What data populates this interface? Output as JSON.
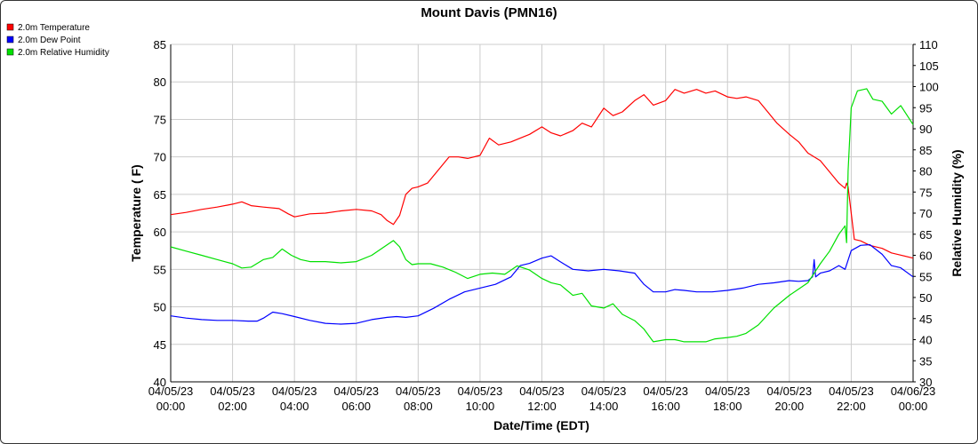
{
  "chart_data": {
    "type": "line",
    "title": "Mount Davis (PMN16)",
    "xlabel": "Date/Time (EDT)",
    "ylabel_left": "Temperature ( F)",
    "ylabel_right": "Relative Humidity (%)",
    "ylim_left": [
      40,
      85
    ],
    "ylim_right": [
      30,
      110
    ],
    "xlim_hours": [
      0,
      24
    ],
    "grid": true,
    "legend_position": "top-left",
    "x_tick_labels": [
      [
        "04/05/23",
        "00:00"
      ],
      [
        "04/05/23",
        "02:00"
      ],
      [
        "04/05/23",
        "04:00"
      ],
      [
        "04/05/23",
        "06:00"
      ],
      [
        "04/05/23",
        "08:00"
      ],
      [
        "04/05/23",
        "10:00"
      ],
      [
        "04/05/23",
        "12:00"
      ],
      [
        "04/05/23",
        "14:00"
      ],
      [
        "04/05/23",
        "16:00"
      ],
      [
        "04/05/23",
        "18:00"
      ],
      [
        "04/05/23",
        "20:00"
      ],
      [
        "04/05/23",
        "22:00"
      ],
      [
        "04/06/23",
        "00:00"
      ]
    ],
    "y_ticks_left": [
      40,
      45,
      50,
      55,
      60,
      65,
      70,
      75,
      80,
      85
    ],
    "y_ticks_right": [
      30,
      35,
      40,
      45,
      50,
      55,
      60,
      65,
      70,
      75,
      80,
      85,
      90,
      95,
      100,
      105,
      110
    ],
    "series": [
      {
        "name": "2.0m Temperature",
        "color": "#ff0000",
        "axis": "left",
        "x": [
          0,
          0.5,
          1,
          1.5,
          2,
          2.3,
          2.6,
          3,
          3.5,
          3.8,
          4,
          4.5,
          5,
          5.5,
          6,
          6.5,
          6.8,
          7,
          7.2,
          7.4,
          7.6,
          7.8,
          8,
          8.3,
          8.6,
          9,
          9.3,
          9.6,
          10,
          10.3,
          10.6,
          11,
          11.3,
          11.6,
          12,
          12.3,
          12.6,
          13,
          13.3,
          13.6,
          14,
          14.3,
          14.6,
          15,
          15.3,
          15.6,
          16,
          16.3,
          16.6,
          17,
          17.3,
          17.6,
          18,
          18.3,
          18.6,
          19,
          19.3,
          19.6,
          20,
          20.3,
          20.6,
          21,
          21.3,
          21.6,
          21.8,
          21.85,
          21.9,
          22.0,
          22.1,
          22.3,
          22.6,
          23,
          23.3,
          23.6,
          24
        ],
        "y": [
          62.3,
          62.6,
          63.0,
          63.3,
          63.7,
          64.0,
          63.5,
          63.3,
          63.1,
          62.4,
          62.0,
          62.4,
          62.5,
          62.8,
          63.0,
          62.8,
          62.3,
          61.5,
          61.0,
          62.2,
          65.0,
          65.8,
          66.0,
          66.5,
          68.0,
          70.0,
          70.0,
          69.8,
          70.2,
          72.5,
          71.6,
          72.0,
          72.5,
          73.0,
          74.0,
          73.2,
          72.8,
          73.5,
          74.5,
          74.0,
          76.5,
          75.5,
          76.0,
          77.5,
          78.3,
          76.9,
          77.5,
          79.0,
          78.5,
          79.0,
          78.5,
          78.8,
          78.0,
          77.8,
          78.0,
          77.5,
          76.0,
          74.5,
          73.0,
          72.0,
          70.5,
          69.5,
          68.0,
          66.5,
          65.8,
          66.5,
          66.0,
          62.5,
          59.0,
          58.8,
          58.2,
          57.8,
          57.2,
          56.9,
          56.5
        ]
      },
      {
        "name": "2.0m Dew Point",
        "color": "#0000ff",
        "axis": "left",
        "x": [
          0,
          0.5,
          1,
          1.5,
          2,
          2.5,
          2.8,
          3,
          3.3,
          3.6,
          4,
          4.5,
          5,
          5.5,
          6,
          6.5,
          7,
          7.3,
          7.6,
          8,
          8.5,
          9,
          9.5,
          10,
          10.5,
          11,
          11.3,
          11.6,
          12,
          12.3,
          12.6,
          13,
          13.5,
          14,
          14.5,
          15,
          15.3,
          15.6,
          16,
          16.3,
          16.6,
          17,
          17.5,
          18,
          18.5,
          19,
          19.5,
          20,
          20.3,
          20.6,
          20.75,
          20.8,
          20.85,
          21,
          21.3,
          21.6,
          21.8,
          22,
          22.3,
          22.6,
          23,
          23.3,
          23.6,
          24
        ],
        "y": [
          48.8,
          48.5,
          48.3,
          48.2,
          48.2,
          48.1,
          48.1,
          48.5,
          49.3,
          49.1,
          48.7,
          48.2,
          47.8,
          47.7,
          47.8,
          48.3,
          48.6,
          48.7,
          48.6,
          48.8,
          49.8,
          51.0,
          52.0,
          52.5,
          53.0,
          54.0,
          55.5,
          55.8,
          56.5,
          56.8,
          56.0,
          55.0,
          54.8,
          55.0,
          54.8,
          54.5,
          53.0,
          52.0,
          52.0,
          52.3,
          52.2,
          52.0,
          52.0,
          52.2,
          52.5,
          53.0,
          53.2,
          53.5,
          53.4,
          53.5,
          54.0,
          56.3,
          54.0,
          54.5,
          54.8,
          55.5,
          55.0,
          57.5,
          58.2,
          58.3,
          57.0,
          55.5,
          55.2,
          54.0
        ]
      },
      {
        "name": "2.0m Relative Humidity",
        "color": "#00e000",
        "axis": "right",
        "x": [
          0,
          0.5,
          1,
          1.5,
          2,
          2.3,
          2.6,
          3,
          3.3,
          3.6,
          3.9,
          4.2,
          4.5,
          5,
          5.5,
          6,
          6.5,
          7,
          7.2,
          7.4,
          7.6,
          7.8,
          8,
          8.4,
          8.8,
          9.2,
          9.6,
          10,
          10.4,
          10.8,
          11.2,
          11.6,
          12,
          12.3,
          12.6,
          13,
          13.3,
          13.6,
          14,
          14.3,
          14.6,
          15,
          15.3,
          15.6,
          16,
          16.3,
          16.6,
          17,
          17.3,
          17.6,
          18,
          18.3,
          18.6,
          19,
          19.5,
          20,
          20.3,
          20.6,
          21,
          21.3,
          21.6,
          21.8,
          21.85,
          21.9,
          22.0,
          22.2,
          22.5,
          22.7,
          23,
          23.3,
          23.6,
          24
        ],
        "y": [
          62.0,
          61.0,
          60.0,
          59.0,
          58.0,
          57.0,
          57.2,
          59.0,
          59.5,
          61.5,
          60.0,
          59.0,
          58.5,
          58.5,
          58.2,
          58.5,
          60.0,
          62.5,
          63.5,
          62.0,
          59.0,
          57.8,
          58.0,
          58.0,
          57.2,
          56.0,
          54.5,
          55.5,
          55.8,
          55.5,
          57.5,
          56.5,
          54.5,
          53.5,
          53.0,
          50.5,
          51.0,
          48.0,
          47.5,
          48.5,
          46.0,
          44.5,
          42.5,
          39.5,
          40.0,
          40.0,
          39.5,
          39.5,
          39.5,
          40.2,
          40.5,
          40.8,
          41.5,
          43.5,
          47.5,
          50.5,
          52.0,
          53.5,
          58.0,
          61.0,
          65.0,
          67.0,
          63.0,
          80.0,
          95.0,
          99.0,
          99.5,
          97.0,
          96.5,
          93.5,
          95.5,
          91.0
        ]
      }
    ]
  }
}
